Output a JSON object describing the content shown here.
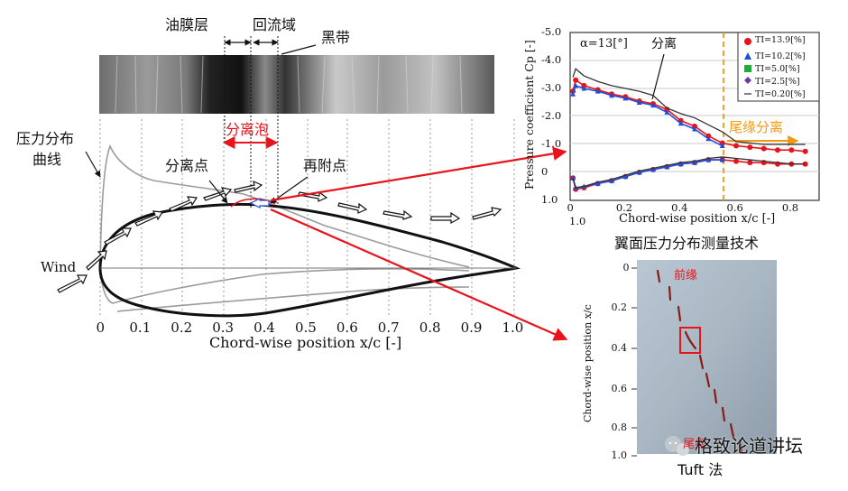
{
  "left_diagram": {
    "labels": {
      "oil_film": "油膜层",
      "recirculation": "回流域",
      "black_band": "黑带",
      "separation_bubble": "分离泡",
      "pressure_curve_line1": "压力分布",
      "pressure_curve_line2": "曲线",
      "separation_point": "分离点",
      "reattachment_point": "再附点",
      "wind": "Wind",
      "x_axis_title": "Chord-wise position x/c [-]"
    },
    "x_ticks": [
      "0",
      "0.1",
      "0.2",
      "0.3",
      "0.4",
      "0.5",
      "0.6",
      "0.7",
      "0.8",
      "0.9",
      "1.0"
    ]
  },
  "chart_data": {
    "type": "line",
    "title": "α=13[°]",
    "xlabel": "Chord-wise position x/c [-]",
    "ylabel": "Pressure coefficient Cp [-]",
    "xlim": [
      0,
      0.9
    ],
    "ylim": [
      -5.0,
      1.0
    ],
    "y_inverted": true,
    "x_tick_labels": [
      "0",
      "0.2",
      "0.4",
      "0.6",
      "0.8"
    ],
    "x_axis_extra_label": "1.0",
    "y_tick_labels": [
      "-5.0",
      "-4.0",
      "-3.0",
      "-2.0",
      "-1.0",
      "0",
      "1.0"
    ],
    "legend": [
      "TI=13.9[%]",
      "TI=10.2[%]",
      "TI=5.0[%]",
      "TI=2.5[%]",
      "TI=0.20[%]"
    ],
    "annotations": [
      "分离",
      "尾缘分离"
    ],
    "dashed_line_x": 0.57,
    "series": [
      {
        "name": "TI=13.9[%] upper",
        "x": [
          0.01,
          0.02,
          0.05,
          0.1,
          0.15,
          0.2,
          0.25,
          0.3,
          0.35,
          0.4,
          0.45,
          0.5,
          0.55,
          0.6,
          0.65,
          0.7,
          0.75,
          0.8,
          0.85
        ],
        "y": [
          -2.9,
          -3.3,
          -3.1,
          -2.95,
          -2.8,
          -2.7,
          -2.55,
          -2.45,
          -2.25,
          -1.85,
          -1.65,
          -1.3,
          -1.05,
          -0.95,
          -0.9,
          -0.85,
          -0.8,
          -0.8,
          -0.75
        ]
      },
      {
        "name": "TI=13.9[%] lower",
        "x": [
          0.01,
          0.02,
          0.05,
          0.1,
          0.15,
          0.2,
          0.25,
          0.3,
          0.35,
          0.4,
          0.45,
          0.5,
          0.55,
          0.6,
          0.65,
          0.7,
          0.75,
          0.8,
          0.85
        ],
        "y": [
          0.2,
          0.6,
          0.55,
          0.4,
          0.3,
          0.15,
          0.0,
          -0.1,
          -0.2,
          -0.3,
          -0.35,
          -0.45,
          -0.45,
          -0.4,
          -0.35,
          -0.35,
          -0.3,
          -0.3,
          -0.3
        ]
      },
      {
        "name": "TI=10.2[%] upper",
        "x": [
          0.01,
          0.02,
          0.05,
          0.1,
          0.15,
          0.2,
          0.25,
          0.3,
          0.35,
          0.4,
          0.45,
          0.5,
          0.55
        ],
        "y": [
          -2.8,
          -3.1,
          -3.0,
          -2.9,
          -2.75,
          -2.65,
          -2.5,
          -2.4,
          -2.15,
          -1.75,
          -1.55,
          -1.2,
          -0.95
        ]
      },
      {
        "name": "TI=10.2[%] lower",
        "x": [
          0.01,
          0.02,
          0.05,
          0.1,
          0.15,
          0.2,
          0.25,
          0.3,
          0.35,
          0.4,
          0.45,
          0.5,
          0.55
        ],
        "y": [
          0.2,
          0.55,
          0.5,
          0.4,
          0.3,
          0.15,
          0.0,
          -0.1,
          -0.2,
          -0.3,
          -0.35,
          -0.45,
          -0.45
        ]
      },
      {
        "name": "TI=0.20[%] upper",
        "x": [
          0.01,
          0.02,
          0.05,
          0.1,
          0.15,
          0.2,
          0.25,
          0.3,
          0.35,
          0.4,
          0.45,
          0.5,
          0.55,
          0.6,
          0.65,
          0.7,
          0.75,
          0.8,
          0.85
        ],
        "y": [
          -3.4,
          -3.7,
          -3.45,
          -3.25,
          -3.1,
          -3.0,
          -2.9,
          -2.75,
          -2.3,
          -2.1,
          -1.95,
          -1.7,
          -1.45,
          -1.1,
          -1.05,
          -1.0,
          -1.0,
          -1.0,
          -1.0
        ]
      },
      {
        "name": "TI=0.20[%] lower",
        "x": [
          0.01,
          0.02,
          0.05,
          0.1,
          0.15,
          0.2,
          0.25,
          0.3,
          0.35,
          0.4,
          0.45,
          0.5,
          0.55,
          0.6,
          0.65,
          0.7,
          0.75,
          0.8,
          0.85
        ],
        "y": [
          0.2,
          0.55,
          0.5,
          0.35,
          0.25,
          0.1,
          -0.05,
          -0.15,
          -0.25,
          -0.35,
          -0.4,
          -0.5,
          -0.55,
          -0.5,
          -0.45,
          -0.4,
          -0.35,
          -0.3,
          -0.3
        ]
      }
    ]
  },
  "right_panel": {
    "section_title": "翼面压力分布测量技术",
    "photo_y_axis_label": "Chord-wise position x/c",
    "photo_y_ticks": [
      "0",
      "0.2",
      "0.4",
      "0.6",
      "0.8",
      "1.0"
    ],
    "leading_edge": "前缘",
    "trailing_edge": "尾缘",
    "tuft_method": "Tuft 法"
  },
  "watermark": "格致论道讲坛",
  "colors": {
    "red": "#e8141c",
    "orange": "#f19a0f",
    "blue": "#1f4fd6",
    "green": "#1fae3a",
    "purple": "#6e3aa6",
    "dark": "#222222"
  }
}
